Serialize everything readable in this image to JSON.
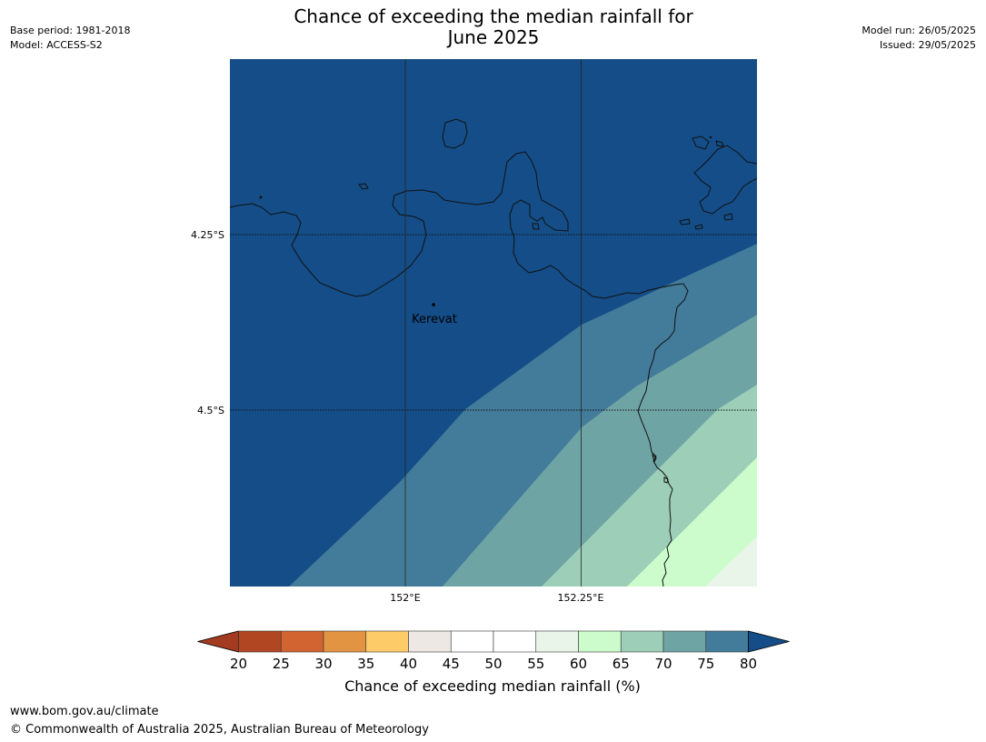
{
  "header": {
    "base_period": "Base period: 1981-2018",
    "model": "Model: ACCESS-S2",
    "title_line1": "Chance of exceeding the median rainfall for",
    "title_line2": "June 2025",
    "model_run": "Model run: 26/05/2025",
    "issued": "Issued: 29/05/2025"
  },
  "map": {
    "lon_ticks": [
      {
        "value": 152.0,
        "label": "152°E"
      },
      {
        "value": 152.25,
        "label": "152.25°E"
      }
    ],
    "lat_ticks": [
      {
        "value": -4.25,
        "label": "4.25°S"
      },
      {
        "value": -4.5,
        "label": "4.5°S"
      }
    ],
    "place": {
      "name": "Kerevat",
      "lon": 152.04,
      "lat": -4.35
    }
  },
  "chart_data": {
    "type": "heatmap",
    "title": "Chance of exceeding the median rainfall for June 2025",
    "colorbar_label": "Chance of exceeding median rainfall (%)",
    "levels": [
      20,
      25,
      30,
      35,
      40,
      45,
      50,
      55,
      60,
      65,
      70,
      75,
      80
    ],
    "colors": [
      "#a33b20",
      "#b14623",
      "#d16430",
      "#e39443",
      "#fecb69",
      "#ede8e4",
      "#ffffff",
      "#ffffff",
      "#e9f5e9",
      "#ccfccb",
      "#9dcfb8",
      "#6fa4a5",
      "#437b9a",
      "#144d87"
    ],
    "extend": "both",
    "visible_field_classes": [
      "75-80",
      "70-75",
      "65-70",
      "60-65",
      "55-60",
      ">80"
    ]
  },
  "footer": {
    "url": "www.bom.gov.au/climate",
    "copyright": "© Commonwealth of Australia 2025, Australian Bureau of Meteorology"
  }
}
